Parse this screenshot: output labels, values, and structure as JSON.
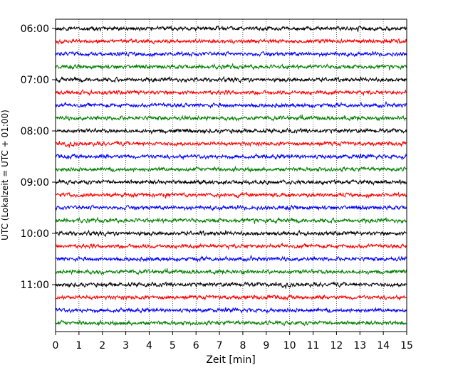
{
  "chart_data": {
    "type": "line",
    "title": "",
    "xlabel": "Zeit  [min]",
    "ylabel": "UTC (Lokalzeit = UTC + 01:00)",
    "xlim": [
      0,
      15
    ],
    "x_ticks": [
      "0",
      "1",
      "2",
      "3",
      "4",
      "5",
      "6",
      "7",
      "8",
      "9",
      "10",
      "11",
      "12",
      "13",
      "14",
      "15"
    ],
    "y_ticks": [
      "06:00",
      "07:00",
      "08:00",
      "09:00",
      "10:00",
      "11:00"
    ],
    "grid": "vertical dotted",
    "minutes_per_trace": 15,
    "row_start": "06:00",
    "row_count": 24,
    "colors": [
      "#000000",
      "#ff0000",
      "#0000ff",
      "#008000"
    ],
    "trace_amplitude": 0.6,
    "series": []
  }
}
